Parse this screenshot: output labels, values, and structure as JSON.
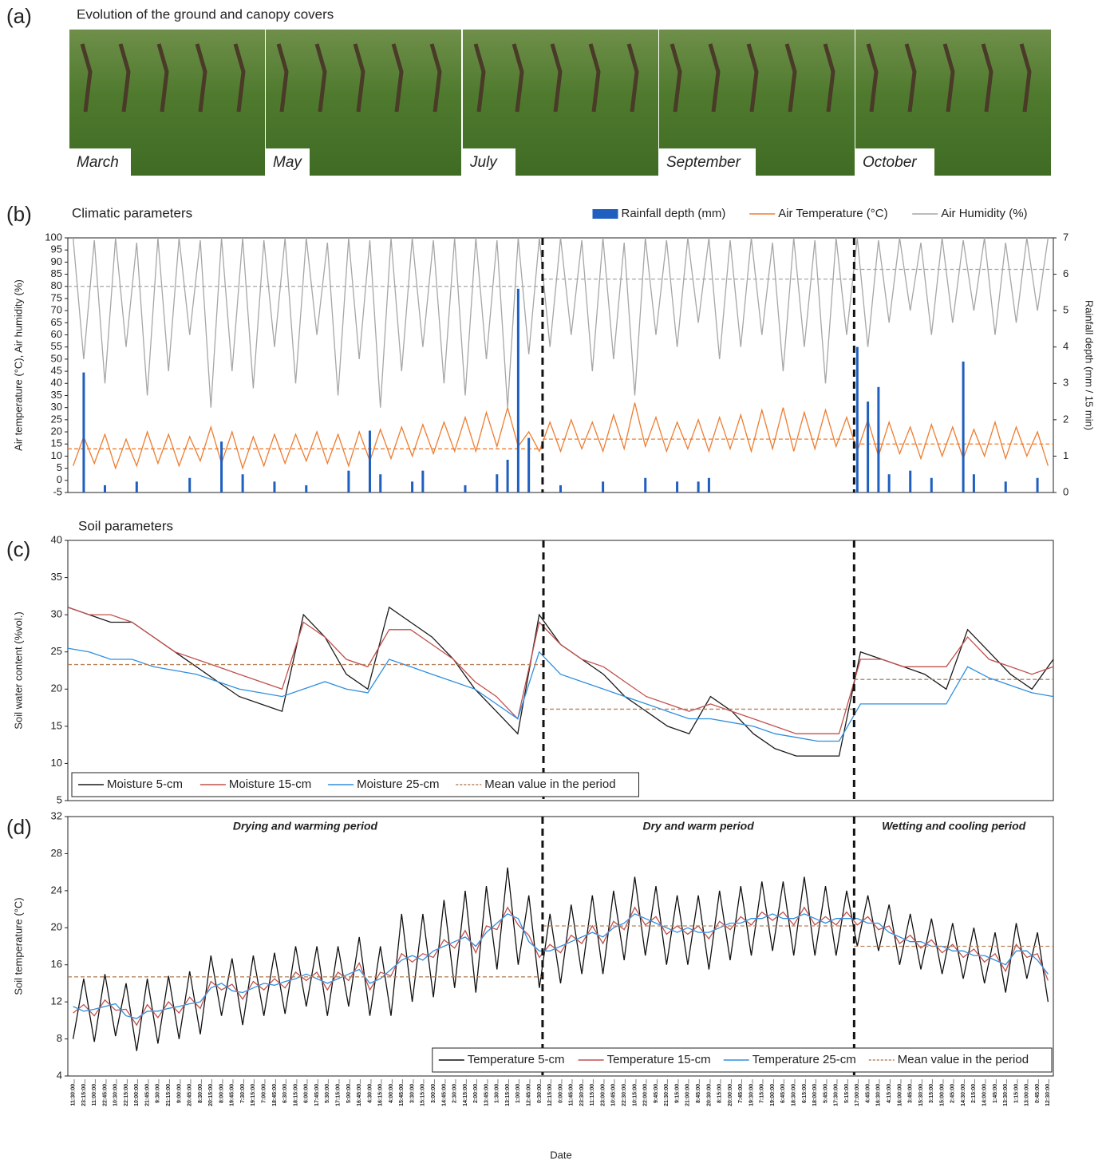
{
  "photos": {
    "panel_label": "(a)",
    "title": "Evolution of the ground and canopy covers",
    "captions": [
      "March",
      "May",
      "July",
      "September",
      "October"
    ]
  },
  "chart_data": [
    {
      "type": "combo",
      "panel_label": "(b)",
      "title": "Climatic parameters",
      "ylabel": "Air temperature (°C), Air humidity (%)",
      "y2label": "Rainfall depth (mm / 15 min)",
      "ylim": [
        -5,
        100
      ],
      "yticks": [
        -5,
        0,
        5,
        10,
        15,
        20,
        25,
        30,
        35,
        40,
        45,
        50,
        55,
        60,
        65,
        70,
        75,
        80,
        85,
        90,
        95,
        100
      ],
      "y2lim": [
        0,
        7
      ],
      "y2ticks": [
        0,
        1,
        2,
        3,
        4,
        5,
        6,
        7
      ],
      "legend": "upper right",
      "period_breaks": [
        44.3,
        73.7
      ],
      "series": [
        {
          "name": "Rainfall depth (mm)",
          "type": "bar",
          "axis": "y2",
          "color": "#1f5fbf",
          "values": [
            0,
            3.3,
            0,
            0.2,
            0,
            0,
            0.3,
            0,
            0,
            0,
            0,
            0.4,
            0,
            0,
            1.4,
            0,
            0.5,
            0,
            0,
            0.3,
            0,
            0,
            0.2,
            0,
            0,
            0,
            0.6,
            0,
            1.7,
            0.5,
            0,
            0,
            0.3,
            0.6,
            0,
            0,
            0,
            0.2,
            0,
            0,
            0.5,
            0.9,
            5.6,
            1.5,
            0,
            0,
            0.2,
            0,
            0,
            0,
            0.3,
            0,
            0,
            0,
            0.4,
            0,
            0,
            0.3,
            0,
            0.3,
            0.4,
            0,
            0,
            0,
            0,
            0,
            0,
            0,
            0,
            0,
            0,
            0,
            0,
            0,
            4.0,
            2.5,
            2.9,
            0.5,
            0,
            0.6,
            0,
            0.4,
            0,
            0,
            3.6,
            0.5,
            0,
            0,
            0.3,
            0,
            0,
            0.4,
            0
          ]
        },
        {
          "name": "Air Temperature (°C)",
          "type": "line",
          "color": "#ed7d31",
          "means": [
            13,
            17,
            15
          ],
          "values": [
            6,
            18,
            7,
            19,
            5,
            17,
            6,
            20,
            7,
            19,
            6,
            18,
            8,
            22,
            7,
            20,
            5,
            18,
            6,
            19,
            7,
            19,
            8,
            20,
            7,
            19,
            6,
            20,
            8,
            21,
            9,
            22,
            10,
            23,
            11,
            24,
            12,
            26,
            12,
            28,
            14,
            30,
            14,
            20,
            12,
            24,
            12,
            25,
            13,
            24,
            12,
            27,
            13,
            32,
            14,
            26,
            12,
            24,
            13,
            25,
            12,
            26,
            13,
            27,
            12,
            29,
            13,
            30,
            12,
            28,
            13,
            29,
            14,
            26,
            12,
            25,
            10,
            24,
            11,
            22,
            9,
            23,
            10,
            22,
            9,
            21,
            10,
            24,
            9,
            22,
            10,
            20,
            6
          ]
        },
        {
          "name": "Air Humidity (%)",
          "type": "line",
          "color": "#a6a6a6",
          "means": [
            80,
            83,
            87
          ],
          "values": [
            100,
            50,
            99,
            40,
            100,
            55,
            98,
            35,
            100,
            45,
            100,
            60,
            99,
            30,
            100,
            45,
            100,
            38,
            99,
            55,
            100,
            40,
            100,
            60,
            98,
            35,
            100,
            50,
            99,
            30,
            100,
            45,
            100,
            55,
            99,
            40,
            100,
            35,
            100,
            50,
            99,
            30,
            100,
            52,
            100,
            55,
            100,
            60,
            99,
            45,
            100,
            50,
            98,
            35,
            100,
            60,
            99,
            55,
            100,
            65,
            100,
            50,
            99,
            55,
            100,
            60,
            98,
            45,
            100,
            55,
            99,
            40,
            100,
            60,
            100,
            55,
            99,
            65,
            100,
            70,
            98,
            60,
            100,
            65,
            99,
            70,
            100,
            60,
            98,
            65,
            100,
            70,
            100
          ]
        }
      ]
    },
    {
      "type": "line",
      "panel_label": "(c)",
      "title": "Soil parameters",
      "ylabel": "Soil water content (%vol.)",
      "ylim": [
        5,
        40
      ],
      "yticks": [
        5,
        10,
        15,
        20,
        25,
        30,
        35,
        40
      ],
      "legend": "lower left",
      "period_breaks": [
        22.2,
        36.7
      ],
      "means": [
        23.3,
        17.3,
        21.3
      ],
      "mean_color": "#b8835a",
      "mean_label": "Mean value in the period",
      "series": [
        {
          "name": "Moisture 5-cm",
          "color": "#1a1a1a",
          "values": [
            31,
            30,
            29,
            29,
            27,
            25,
            23,
            21,
            19,
            18,
            17,
            30,
            27,
            22,
            20,
            31,
            29,
            27,
            24,
            20,
            17,
            14,
            30,
            26,
            24,
            22,
            19,
            17,
            15,
            14,
            19,
            17,
            14,
            12,
            11,
            11,
            11,
            25,
            24,
            23,
            22,
            20,
            28,
            25,
            22,
            20,
            24
          ]
        },
        {
          "name": "Moisture 15-cm",
          "color": "#c0504d",
          "values": [
            31,
            30,
            30,
            29,
            27,
            25,
            24,
            23,
            22,
            21,
            20,
            29,
            27,
            24,
            23,
            28,
            28,
            26,
            24,
            21,
            19,
            16,
            29,
            26,
            24,
            23,
            21,
            19,
            18,
            17,
            18,
            17,
            16,
            15,
            14,
            14,
            14,
            24,
            24,
            23,
            23,
            23,
            27,
            24,
            23,
            22,
            23
          ]
        },
        {
          "name": "Moisture 25-cm",
          "color": "#2e8fe0",
          "values": [
            25.5,
            25,
            24,
            24,
            23,
            22.5,
            22,
            21,
            20,
            19.5,
            19,
            20,
            21,
            20,
            19.5,
            24,
            23,
            22,
            21,
            20,
            18,
            16,
            25,
            22,
            21,
            20,
            19,
            18,
            17,
            16,
            16,
            15.5,
            15,
            14,
            13.5,
            13,
            13,
            18,
            18,
            18,
            18,
            18,
            23,
            21.5,
            20.5,
            19.5,
            19
          ]
        }
      ]
    },
    {
      "type": "line",
      "panel_label": "(d)",
      "ylabel": "Soil temperature (°C)",
      "xlabel": "Date",
      "ylim": [
        4,
        32
      ],
      "yticks": [
        4,
        8,
        12,
        16,
        20,
        24,
        28,
        32
      ],
      "legend": "lower right",
      "period_breaks": [
        44.3,
        73.7
      ],
      "period_labels": [
        "Drying and warming period",
        "Dry and warm period",
        "Wetting and cooling period"
      ],
      "means": [
        14.7,
        20.2,
        18
      ],
      "mean_color": "#b8835a",
      "mean_label": "Mean value in the period",
      "categories": [
        "11:30:00...",
        "23:15:00...",
        "11:00:00...",
        "22:45:00...",
        "10:30:00...",
        "22:15:00...",
        "10:00:00...",
        "21:45:00...",
        "9:30:00...",
        "21:15:00...",
        "9:00:00...",
        "20:45:00...",
        "8:30:00...",
        "20:15:00...",
        "8:00:00...",
        "19:45:00...",
        "7:30:00...",
        "19:15:00...",
        "7:00:00...",
        "18:45:00...",
        "6:30:00...",
        "18:15:00...",
        "6:00:00...",
        "17:45:00...",
        "5:30:00...",
        "17:15:00...",
        "5:00:00...",
        "16:45:00...",
        "4:30:00...",
        "16:15:00...",
        "4:00:00...",
        "15:45:00...",
        "3:30:00...",
        "15:15:00...",
        "3:00:00...",
        "14:45:00...",
        "2:30:00...",
        "14:15:00...",
        "2:00:00...",
        "13:45:00...",
        "1:30:00...",
        "13:15:00...",
        "1:00:00...",
        "12:45:00...",
        "0:30:00...",
        "12:15:00...",
        "0:00:00...",
        "11:45:00...",
        "23:30:00...",
        "11:15:00...",
        "23:00:00...",
        "10:45:00...",
        "22:30:00...",
        "10:15:00...",
        "22:00:00...",
        "9:45:00...",
        "21:30:00...",
        "9:15:00...",
        "21:00:00...",
        "8:45:00...",
        "20:30:00...",
        "8:15:00...",
        "20:00:00...",
        "7:45:00...",
        "19:30:00...",
        "7:15:00...",
        "19:00:00...",
        "6:45:00...",
        "18:30:00...",
        "6:15:00...",
        "18:00:00...",
        "5:45:00...",
        "17:30:00...",
        "5:15:00...",
        "17:00:00...",
        "4:45:00...",
        "16:30:00...",
        "4:15:00...",
        "16:00:00...",
        "3:45:00...",
        "15:30:00...",
        "3:15:00...",
        "15:00:00...",
        "2:45:00...",
        "14:30:00...",
        "2:15:00...",
        "14:00:00...",
        "1:45:00...",
        "13:30:00...",
        "1:15:00...",
        "13:00:00...",
        "0:45:00...",
        "12:30:00..."
      ],
      "series": [
        {
          "name": "Temperature 5-cm",
          "color": "#111111",
          "values": [
            8,
            14.5,
            7.7,
            15,
            8.3,
            14,
            6.7,
            14.5,
            7.5,
            14.8,
            8,
            15.3,
            8.5,
            17,
            10.5,
            16.7,
            9.5,
            17,
            10.5,
            17.3,
            10.7,
            18,
            11.5,
            18,
            10.5,
            18,
            11.5,
            19,
            10.5,
            18,
            10.5,
            21.5,
            12,
            21.5,
            12.5,
            23,
            13.5,
            24,
            13,
            24.5,
            15.5,
            26.5,
            16,
            23.5,
            13.5,
            21.5,
            14,
            22.5,
            15,
            23.5,
            15,
            24,
            16.5,
            25.5,
            17,
            24.5,
            16,
            23.5,
            16,
            23.5,
            15.5,
            24,
            16.5,
            24.5,
            17,
            25,
            17.5,
            25,
            17,
            25.5,
            17,
            24.5,
            17,
            24,
            18,
            23.5,
            17.5,
            22.5,
            16,
            21.5,
            15.5,
            21,
            15,
            20.5,
            14.5,
            20,
            14,
            19.5,
            13,
            20.5,
            14.5,
            19.5,
            12
          ]
        },
        {
          "name": "Temperature 15-cm",
          "color": "#c0504d",
          "values": [
            10.8,
            11.7,
            10.5,
            12.2,
            11.1,
            11.2,
            9.5,
            11.7,
            10.3,
            12,
            10.8,
            12.5,
            11.3,
            14.2,
            13.3,
            13.9,
            12.3,
            14.2,
            13.3,
            14.5,
            13.5,
            15.2,
            14.3,
            15.2,
            13.3,
            15.2,
            14.3,
            16.2,
            13.3,
            15.2,
            14.8,
            17.2,
            16.3,
            17.2,
            16.8,
            18.7,
            17.8,
            19.7,
            17.3,
            20.2,
            19.8,
            22.2,
            20.3,
            19.2,
            16.8,
            18.2,
            17.3,
            19.2,
            18.3,
            20.2,
            18.3,
            20.7,
            19.8,
            22.2,
            20.3,
            21.2,
            19.3,
            20.2,
            19.3,
            20.2,
            18.8,
            20.7,
            19.8,
            21.2,
            20.3,
            21.7,
            20.8,
            21.7,
            20.3,
            22.2,
            20.3,
            21.2,
            20.3,
            21.7,
            20.3,
            21.2,
            19.8,
            20.2,
            18.3,
            19.2,
            17.8,
            18.7,
            17.3,
            18.2,
            16.8,
            17.7,
            16.3,
            17.2,
            15.3,
            18.2,
            16.8,
            17.2,
            14.3
          ]
        },
        {
          "name": "Temperature 25-cm",
          "color": "#2e8fe0",
          "values": [
            11.5,
            11,
            11.2,
            11.5,
            11.8,
            10.5,
            10.2,
            11,
            11,
            11.3,
            11.5,
            11.8,
            12,
            13.5,
            14,
            13.2,
            13,
            13.5,
            14,
            13.8,
            14.2,
            14.5,
            15,
            14.5,
            14,
            14.5,
            15,
            15.5,
            14,
            14.5,
            15.5,
            16.5,
            17,
            16.5,
            17.5,
            18,
            18.5,
            19,
            18,
            19.5,
            20.5,
            21.5,
            21,
            18.5,
            17.5,
            17.5,
            18,
            18.5,
            19,
            19.5,
            19,
            20,
            20.5,
            21.5,
            21,
            20.5,
            20,
            19.5,
            20,
            19.5,
            19.5,
            20,
            20.5,
            20.5,
            21,
            21,
            21.5,
            21,
            21,
            21.5,
            21,
            20.5,
            21,
            21,
            21,
            20.5,
            20.5,
            19.5,
            19,
            18.5,
            18.5,
            18,
            18,
            17.5,
            17.5,
            17,
            17,
            16.5,
            16,
            17.5,
            17.5,
            16.5,
            15
          ]
        }
      ]
    }
  ]
}
